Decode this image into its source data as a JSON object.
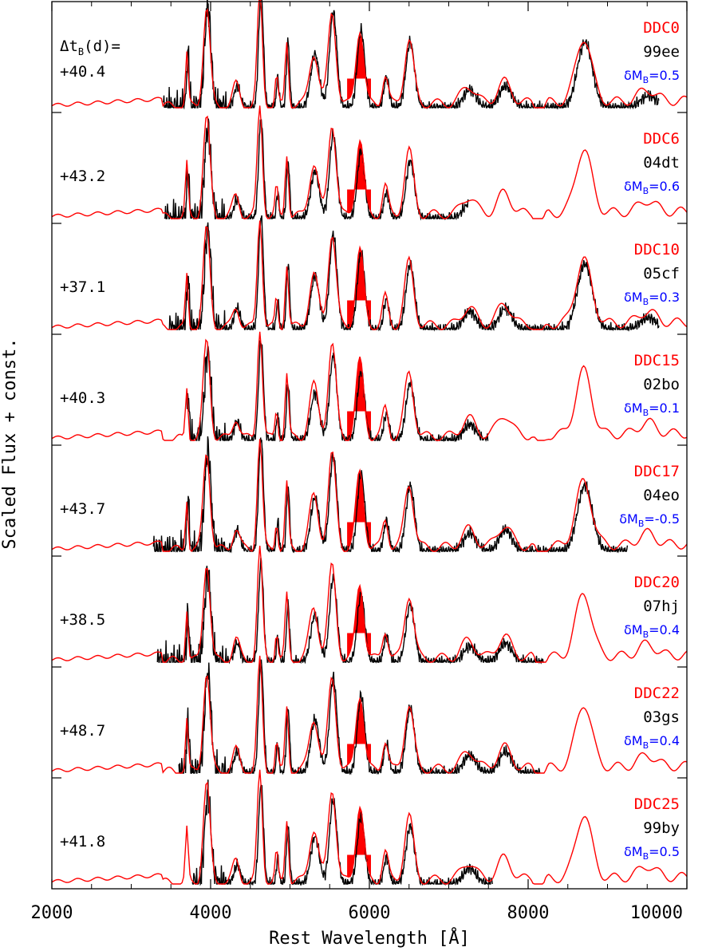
{
  "chart_data": {
    "type": "line",
    "xlabel": "Rest Wavelength [Å]",
    "ylabel": "Scaled Flux + const.",
    "xlim": [
      2000,
      10000
    ],
    "xticks": [
      "2000",
      "4000",
      "6000",
      "8000",
      "10000"
    ],
    "header_label": {
      "main": "Δt",
      "sub": "B",
      "rest": "(d)="
    },
    "colors": {
      "model": "#ff0000",
      "observed": "#000000",
      "delta_mag": "#0000ff",
      "fill": "#ff0000"
    },
    "panels": [
      {
        "model": "DDC0",
        "object": "99ee",
        "phase": "+40.4",
        "dm_value": "0.5",
        "obs_range": [
          3400,
          9650
        ]
      },
      {
        "model": "DDC6",
        "object": "04dt",
        "phase": "+43.2",
        "dm_value": "0.6",
        "obs_range": [
          3420,
          7250
        ]
      },
      {
        "model": "DDC10",
        "object": "05cf",
        "phase": "+37.1",
        "dm_value": "0.3",
        "obs_range": [
          3480,
          9650
        ]
      },
      {
        "model": "DDC15",
        "object": "02bo",
        "phase": "+40.3",
        "dm_value": "0.1",
        "obs_range": [
          3700,
          7500
        ]
      },
      {
        "model": "DDC17",
        "object": "04eo",
        "phase": "+43.7",
        "dm_value": "-0.5",
        "obs_range": [
          3280,
          9250
        ]
      },
      {
        "model": "DDC20",
        "object": "07hj",
        "phase": "+38.5",
        "dm_value": "0.4",
        "obs_range": [
          3330,
          8200
        ]
      },
      {
        "model": "DDC22",
        "object": "03gs",
        "phase": "+48.7",
        "dm_value": "0.4",
        "obs_range": [
          3600,
          8150
        ]
      },
      {
        "model": "DDC25",
        "object": "99by",
        "phase": "+41.8",
        "dm_value": "0.5",
        "obs_range": [
          3770,
          7550
        ]
      }
    ],
    "dm_prefix": "δM",
    "dm_sub": "B",
    "dm_eq": "="
  }
}
